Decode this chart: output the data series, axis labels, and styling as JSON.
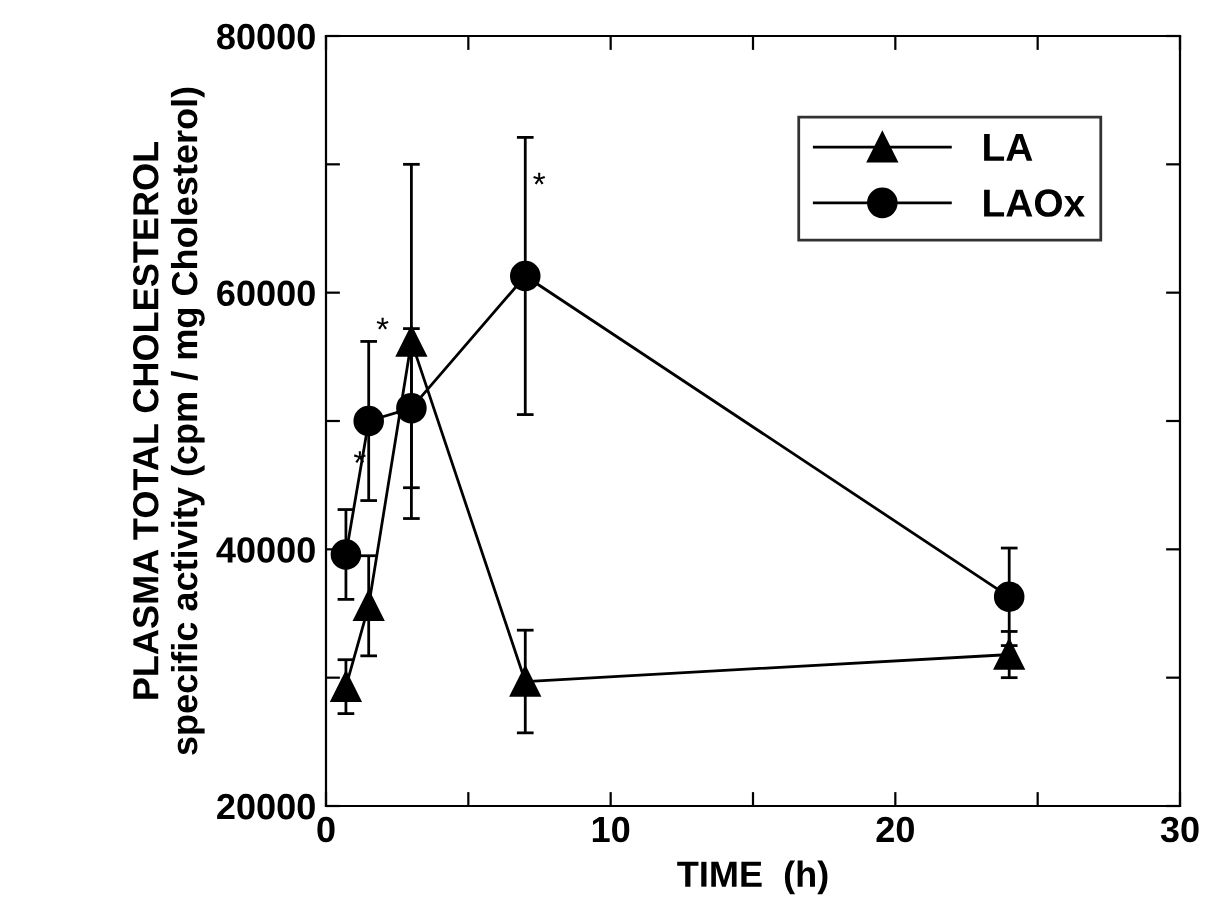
{
  "chart_data": {
    "type": "line",
    "xlabel": "TIME  (h)",
    "ylabel": "PLASMA TOTAL CHOLESTEROL\nspecific activity (cpm / mg Cholesterol)",
    "x": [
      0.7,
      1.5,
      3,
      7,
      24
    ],
    "series": [
      {
        "name": "LA",
        "color": "#000000",
        "marker": "triangle",
        "values": [
          29300,
          35600,
          56200,
          29700,
          31800
        ],
        "errors": [
          2100,
          3900,
          13800,
          4000,
          1800
        ]
      },
      {
        "name": "LAOx",
        "color": "#000000",
        "marker": "circle",
        "values": [
          39600,
          50000,
          51000,
          61300,
          36300
        ],
        "errors": [
          3500,
          6200,
          6200,
          10800,
          3800
        ]
      }
    ],
    "xlim": [
      0,
      30
    ],
    "ylim": [
      20000,
      80000
    ],
    "xticks": [
      0,
      {
        "value": 5,
        "label": null
      },
      10,
      {
        "value": 15,
        "label": null
      },
      20,
      {
        "value": 25,
        "label": null
      },
      30
    ],
    "yticks": [
      20000,
      {
        "value": 30000,
        "label": null
      },
      40000,
      {
        "value": 50000,
        "label": null
      },
      60000,
      {
        "value": 70000,
        "label": null
      },
      80000
    ],
    "annotations": [
      {
        "text": "*",
        "x": 0.7,
        "y": 39600
      },
      {
        "text": "*",
        "x": 1.5,
        "y": 50000
      },
      {
        "text": "*",
        "x": 7,
        "y": 61300
      }
    ],
    "legend": "top right",
    "grid": false,
    "line_style": "solid"
  }
}
